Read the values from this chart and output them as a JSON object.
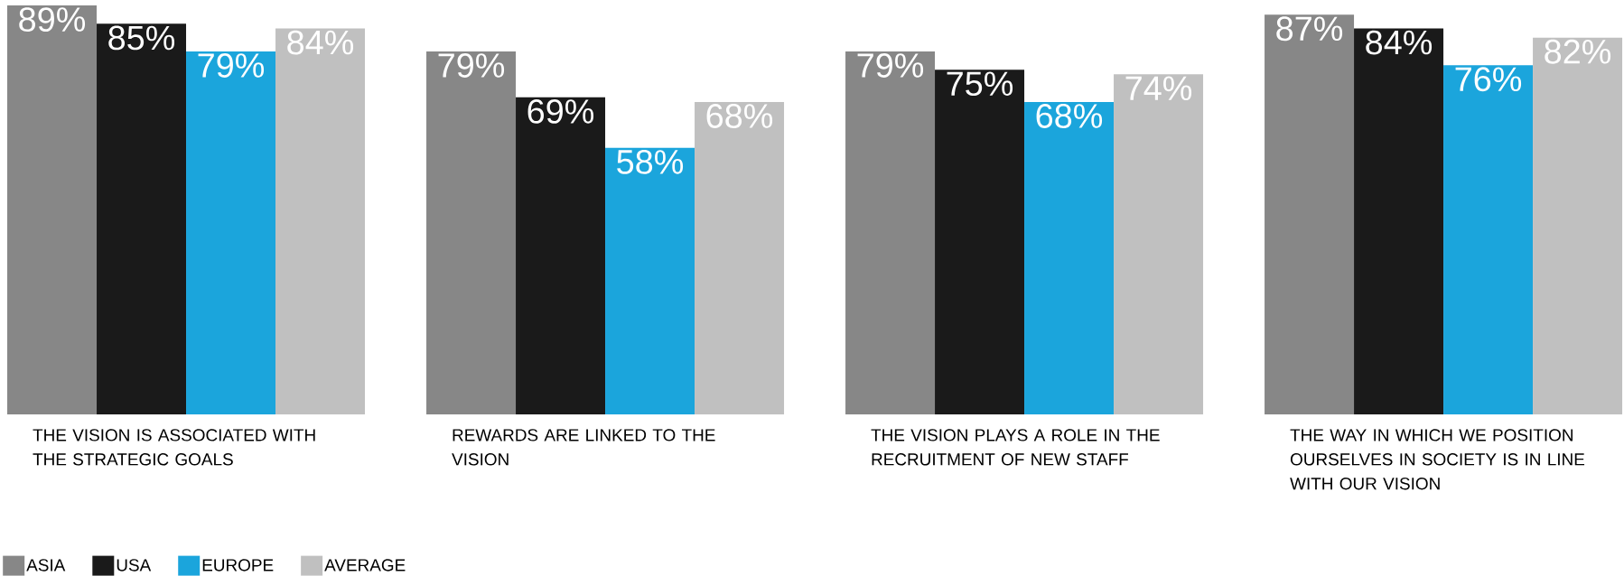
{
  "chart_data": {
    "type": "bar",
    "categories": [
      "THE VISION IS ASSOCIATED WITH THE STRATEGIC GOALS",
      "REWARDS ARE LINKED TO THE VISION",
      "THE VISION PLAYS A ROLE IN THE RECRUITMENT OF NEW STAFF",
      "THE WAY IN WHICH WE POSITION OURSELVES IN SOCIETY IS IN LINE WITH OUR VISION"
    ],
    "series": [
      {
        "name": "ASIA",
        "color": "#878787",
        "values": [
          89,
          79,
          79,
          87
        ],
        "value_labels": [
          "89%",
          "79%",
          "79%",
          "87%"
        ]
      },
      {
        "name": "USA",
        "color": "#1a1a1a",
        "values": [
          85,
          69,
          75,
          84
        ],
        "value_labels": [
          "85%",
          "69%",
          "75%",
          "84%"
        ]
      },
      {
        "name": "EUROPE",
        "color": "#1ba5dc",
        "values": [
          79,
          58,
          68,
          76
        ],
        "value_labels": [
          "79%",
          "58%",
          "68%",
          "76%"
        ]
      },
      {
        "name": "AVERAGE",
        "color": "#c0c0c0",
        "values": [
          84,
          68,
          74,
          82
        ],
        "value_labels": [
          "84%",
          "68%",
          "74%",
          "82%"
        ]
      }
    ],
    "legend": "bottom left"
  }
}
